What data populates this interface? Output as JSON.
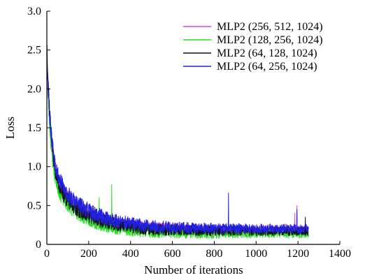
{
  "chart_data": {
    "type": "line",
    "xlabel": "Number of iterations",
    "ylabel": "Loss",
    "xlim": [
      0,
      1400
    ],
    "ylim": [
      0,
      3.0
    ],
    "x_ticks": [
      "0",
      "200",
      "400",
      "600",
      "800",
      "1000",
      "1200",
      "1400"
    ],
    "y_ticks": [
      "0",
      "0.5",
      "1.0",
      "1.5",
      "2.0",
      "2.5",
      "3.0"
    ],
    "grid": false,
    "legend_position": "top-right",
    "x_max": 1250,
    "series": [
      {
        "name": "MLP2 (256, 512, 1024)",
        "color": "#e040e0",
        "start": 2.45,
        "plateau": 0.18,
        "decay": 0.0065,
        "mid": 0.95,
        "decay2": 0.05,
        "noise": 0.09,
        "seed": 11,
        "spikes": [
          [
            1195,
            0.5
          ],
          [
            1185,
            0.4
          ]
        ]
      },
      {
        "name": "MLP2 (128, 256, 1024)",
        "color": "#22dd22",
        "start": 2.4,
        "plateau": 0.14,
        "decay": 0.007,
        "mid": 0.9,
        "decay2": 0.055,
        "noise": 0.085,
        "seed": 23,
        "spikes": [
          [
            310,
            0.77
          ],
          [
            250,
            0.6
          ]
        ]
      },
      {
        "name": "MLP2 (64, 128, 1024)",
        "color": "#111111",
        "start": 2.62,
        "plateau": 0.17,
        "decay": 0.0066,
        "mid": 0.92,
        "decay2": 0.05,
        "noise": 0.085,
        "seed": 37,
        "spikes": [
          [
            1235,
            0.35
          ]
        ]
      },
      {
        "name": "MLP2 (64, 256, 1024)",
        "color": "#2020e0",
        "start": 2.35,
        "plateau": 0.2,
        "decay": 0.0062,
        "mid": 1.0,
        "decay2": 0.045,
        "noise": 0.09,
        "seed": 53,
        "spikes": [
          [
            868,
            0.66
          ],
          [
            1195,
            0.45
          ]
        ]
      }
    ]
  }
}
